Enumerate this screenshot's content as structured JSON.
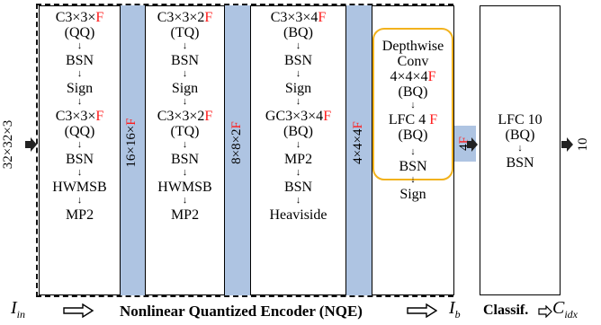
{
  "input_dims": "32×32×3",
  "output_dims": "10",
  "band_labels": [
    {
      "pre": "16×16×",
      "f": "F"
    },
    {
      "pre": "8×8×2",
      "f": "F"
    },
    {
      "pre": "4×4×4",
      "f": "F"
    },
    {
      "pre": "4",
      "f": "F"
    }
  ],
  "block1": {
    "conv1_pre": "C3×3×",
    "conv1_f": "F",
    "conv1_q": "(QQ)",
    "bsn1": "BSN",
    "sign": "Sign",
    "conv2_pre": "C3×3×",
    "conv2_f": "F",
    "conv2_q": "(QQ)",
    "bsn2": "BSN",
    "hwmsb": "HWMSB",
    "mp": "MP2"
  },
  "block2": {
    "conv1_pre": "C3×3×2",
    "conv1_f": "F",
    "conv1_q": "(TQ)",
    "bsn1": "BSN",
    "sign": "Sign",
    "conv2_pre": "C3×3×2",
    "conv2_f": "F",
    "conv2_q": "(TQ)",
    "bsn2": "BSN",
    "hwmsb": "HWMSB",
    "mp": "MP2"
  },
  "block3": {
    "conv1_pre": "C3×3×4",
    "conv1_f": "F",
    "conv1_q": "(BQ)",
    "bsn1": "BSN",
    "sign": "Sign",
    "conv2_pre": "GC3×3×4",
    "conv2_f": "F",
    "conv2_q": "(BQ)",
    "mp": "MP2",
    "bsn2": "BSN",
    "heaviside": "Heaviside"
  },
  "block4": {
    "dw1": "Depthwise",
    "dw2": "Conv",
    "dw_pre": "4×4×4",
    "dw_f": "F",
    "dw_q": "(BQ)",
    "lfc_pre": "LFC 4",
    "lfc_f": "F",
    "lfc_q": "(BQ)",
    "bsn": "BSN",
    "sign": "Sign"
  },
  "classifier": {
    "lfc": "LFC 10",
    "q": "(BQ)",
    "bsn": "BSN"
  },
  "bottom": {
    "i_in": "I",
    "i_in_sub": "in",
    "encoder_label": "Nonlinear Quantized Encoder (NQE)",
    "i_b": "I",
    "i_b_sub": "b",
    "classif": "Classif.",
    "c_idx": "C",
    "c_idx_sub": "idx"
  },
  "arrow_glyph": "↓"
}
